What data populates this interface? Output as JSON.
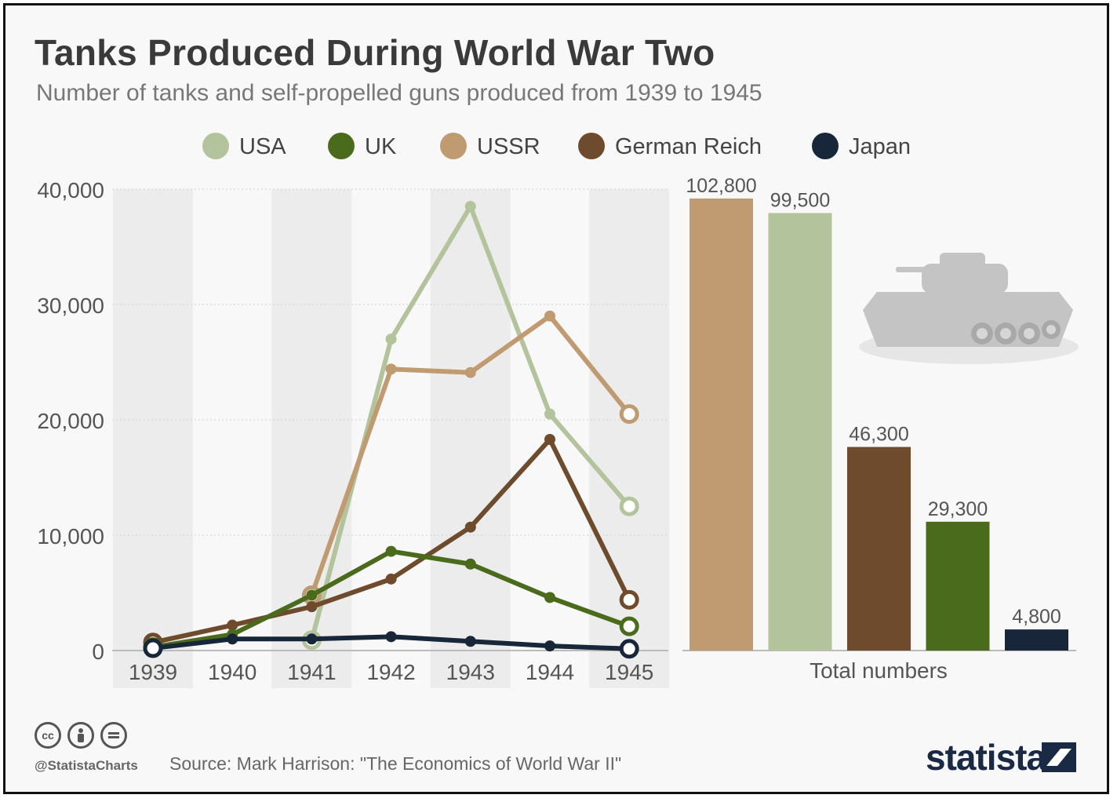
{
  "header": {
    "title": "Tanks Produced During World War Two",
    "subtitle": "Number of tanks and self-propelled guns produced from 1939 to 1945"
  },
  "footer": {
    "handle": "@StatistaCharts",
    "source": "Source: Mark Harrison: \"The Economics of World War II\"",
    "brand": "statista",
    "license_icons": [
      "cc-icon",
      "attribution-icon",
      "no-derivatives-icon"
    ]
  },
  "illustration": {
    "icon": "tank-icon"
  },
  "chart_data": [
    {
      "type": "line",
      "x": [
        "1939",
        "1940",
        "1941",
        "1942",
        "1943",
        "1944",
        "1945"
      ],
      "ylim": [
        0,
        40000
      ],
      "yticks": [
        0,
        10000,
        20000,
        30000,
        40000
      ],
      "ytick_labels": [
        "0",
        "10,000",
        "20,000",
        "30,000",
        "40,000"
      ],
      "grid": true,
      "alternating_column_shading": true,
      "legend_position": "top",
      "series": [
        {
          "name": "USA",
          "color": "#b3c39c",
          "values": [
            null,
            null,
            900,
            27000,
            38500,
            20500,
            12500
          ]
        },
        {
          "name": "UK",
          "color": "#4b6b1c",
          "values": [
            300,
            1400,
            4800,
            8600,
            7500,
            4600,
            2100
          ]
        },
        {
          "name": "USSR",
          "color": "#c09a70",
          "values": [
            null,
            null,
            4800,
            24400,
            24100,
            29000,
            20500
          ]
        },
        {
          "name": "German Reich",
          "color": "#6d4b2c",
          "values": [
            700,
            2200,
            3800,
            6200,
            10700,
            18300,
            4400
          ]
        },
        {
          "name": "Japan",
          "color": "#172638",
          "values": [
            200,
            1000,
            1000,
            1200,
            800,
            400,
            150
          ]
        }
      ]
    },
    {
      "type": "bar",
      "xlabel": "Total numbers",
      "categories": [
        "USSR",
        "USA",
        "German Reich",
        "UK",
        "Japan"
      ],
      "values": [
        102800,
        99500,
        46300,
        29300,
        4800
      ],
      "value_labels": [
        "102,800",
        "99,500",
        "46,300",
        "29,300",
        "4,800"
      ],
      "colors": [
        "#c09a70",
        "#b3c39c",
        "#6d4b2c",
        "#4b6b1c",
        "#172638"
      ]
    }
  ]
}
